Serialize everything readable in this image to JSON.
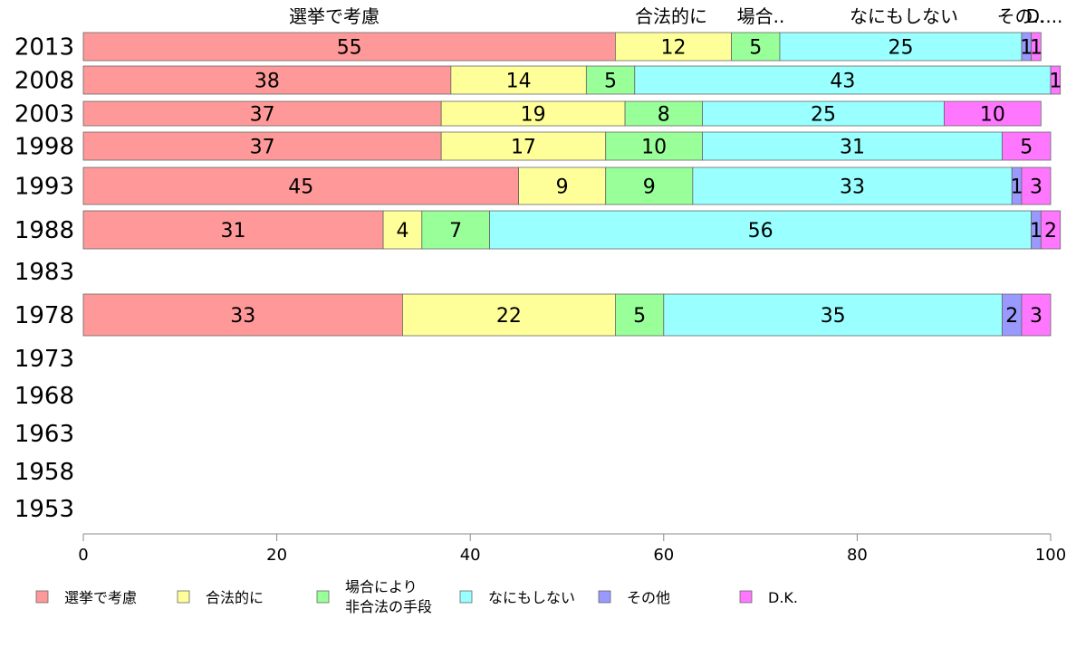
{
  "chart_data": {
    "type": "bar",
    "orientation": "horizontal",
    "stacked": true,
    "categories": [
      "2013",
      "2008",
      "2003",
      "1998",
      "1993",
      "1988",
      "1983",
      "1978",
      "1973",
      "1968",
      "1963",
      "1958",
      "1953"
    ],
    "series": [
      {
        "name": "選挙で考慮",
        "top_label": "選挙で考慮",
        "color": "#ff9999",
        "values": [
          55,
          38,
          37,
          37,
          45,
          31,
          null,
          33,
          null,
          null,
          null,
          null,
          null
        ]
      },
      {
        "name": "合法的に",
        "top_label": "合法的に",
        "color": "#ffff99",
        "values": [
          12,
          14,
          19,
          17,
          9,
          4,
          null,
          22,
          null,
          null,
          null,
          null,
          null
        ]
      },
      {
        "name": "場合により\n非合法の手段",
        "top_label": "場合..",
        "color": "#99ff99",
        "values": [
          5,
          5,
          8,
          10,
          9,
          7,
          null,
          5,
          null,
          null,
          null,
          null,
          null
        ]
      },
      {
        "name": "なにもしない",
        "top_label": "なにもしない",
        "color": "#99ffff",
        "values": [
          25,
          43,
          25,
          31,
          33,
          56,
          null,
          35,
          null,
          null,
          null,
          null,
          null
        ]
      },
      {
        "name": "その他",
        "top_label": "その..",
        "color": "#9999ff",
        "values": [
          1,
          0,
          0,
          0,
          1,
          1,
          null,
          2,
          null,
          null,
          null,
          null,
          null
        ]
      },
      {
        "name": "D.K.",
        "top_label": "D....",
        "color": "#ff77ff",
        "values": [
          1,
          1,
          10,
          5,
          3,
          2,
          null,
          3,
          null,
          null,
          null,
          null,
          null
        ]
      }
    ],
    "xlim": [
      0,
      100
    ],
    "xticks": [
      0,
      20,
      40,
      60,
      80,
      100
    ],
    "legend_position": "bottom",
    "grid": false
  }
}
